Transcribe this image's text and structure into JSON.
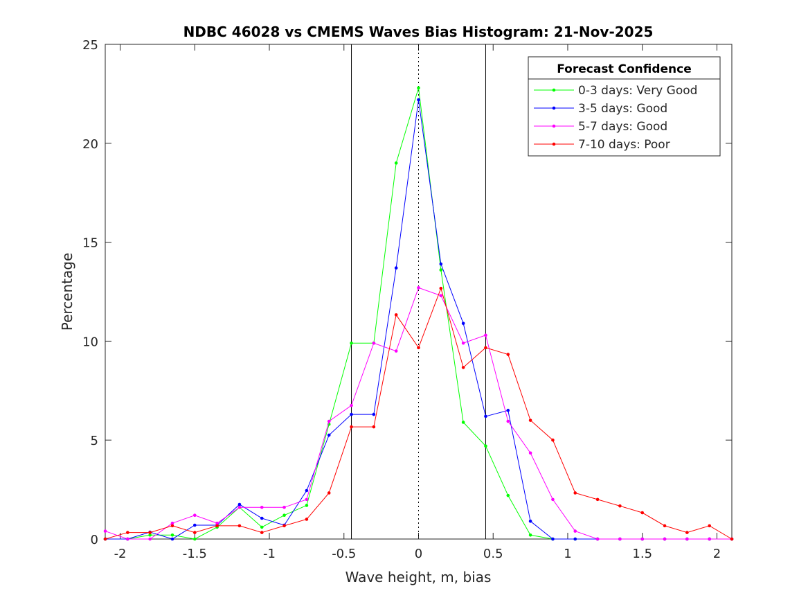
{
  "chart_data": {
    "type": "line",
    "title": "NDBC 46028 vs CMEMS Waves Bias Histogram: 21-Nov-2025",
    "xlabel": "Wave height, m, bias",
    "ylabel": "Percentage",
    "xlim": [
      -2.1,
      2.1
    ],
    "ylim": [
      0,
      25
    ],
    "xticks": [
      -2,
      -1.5,
      -1,
      -0.5,
      0,
      0.5,
      1,
      1.5,
      2
    ],
    "xtick_labels": [
      "-2",
      "-1.5",
      "-1",
      "-0.5",
      "0",
      "0.5",
      "1",
      "1.5",
      "2"
    ],
    "yticks": [
      0,
      5,
      10,
      15,
      20,
      25
    ],
    "ytick_labels": [
      "0",
      "5",
      "10",
      "15",
      "20",
      "25"
    ],
    "vertical_lines": [
      {
        "x": -0.45,
        "style": "solid"
      },
      {
        "x": 0,
        "style": "dotted"
      },
      {
        "x": 0.45,
        "style": "solid"
      }
    ],
    "grid": false,
    "legend": {
      "title": "Forecast Confidence",
      "placement": "top-right"
    },
    "x": [
      -2.1,
      -1.95,
      -1.8,
      -1.65,
      -1.5,
      -1.35,
      -1.2,
      -1.05,
      -0.9,
      -0.75,
      -0.6,
      -0.45,
      -0.3,
      -0.15,
      0,
      0.15,
      0.3,
      0.45,
      0.6,
      0.75,
      0.9,
      1.05,
      1.2,
      1.35,
      1.5,
      1.65,
      1.8,
      1.95,
      2.1
    ],
    "series": [
      {
        "name": "0-3 days: Very Good",
        "color": "#00ff00",
        "values": [
          0,
          0,
          0.2,
          0.2,
          0,
          0.6,
          1.6,
          0.6,
          1.2,
          1.7,
          5.8,
          9.9,
          9.9,
          19.0,
          22.8,
          13.6,
          5.9,
          4.7,
          2.2,
          0.2,
          0,
          0,
          0,
          0,
          0,
          0,
          0,
          0,
          0
        ]
      },
      {
        "name": "3-5 days: Good",
        "color": "#0000ff",
        "values": [
          0,
          0,
          0.35,
          0,
          0.7,
          0.7,
          1.75,
          1.05,
          0.7,
          2.45,
          5.25,
          6.3,
          6.3,
          13.7,
          22.2,
          13.9,
          10.9,
          6.2,
          6.5,
          0.9,
          0,
          0,
          0,
          0,
          0,
          0,
          0,
          0,
          0
        ]
      },
      {
        "name": "5-7 days: Good",
        "color": "#ff00ff",
        "values": [
          0.4,
          0,
          0,
          0.8,
          1.2,
          0.8,
          1.6,
          1.6,
          1.6,
          2.0,
          5.95,
          6.75,
          9.9,
          9.5,
          12.7,
          12.3,
          9.9,
          10.3,
          5.95,
          4.35,
          2.0,
          0.4,
          0,
          0,
          0,
          0,
          0,
          0,
          0
        ]
      },
      {
        "name": "7-10 days: Poor",
        "color": "#ff0000",
        "values": [
          0,
          0.33,
          0.33,
          0.67,
          0.33,
          0.67,
          0.67,
          0.33,
          0.67,
          1.0,
          2.33,
          5.67,
          5.67,
          11.33,
          9.67,
          12.67,
          8.67,
          9.67,
          9.33,
          6.0,
          5.0,
          2.33,
          2.0,
          1.67,
          1.33,
          0.67,
          0.33,
          0.67,
          0
        ]
      }
    ]
  }
}
